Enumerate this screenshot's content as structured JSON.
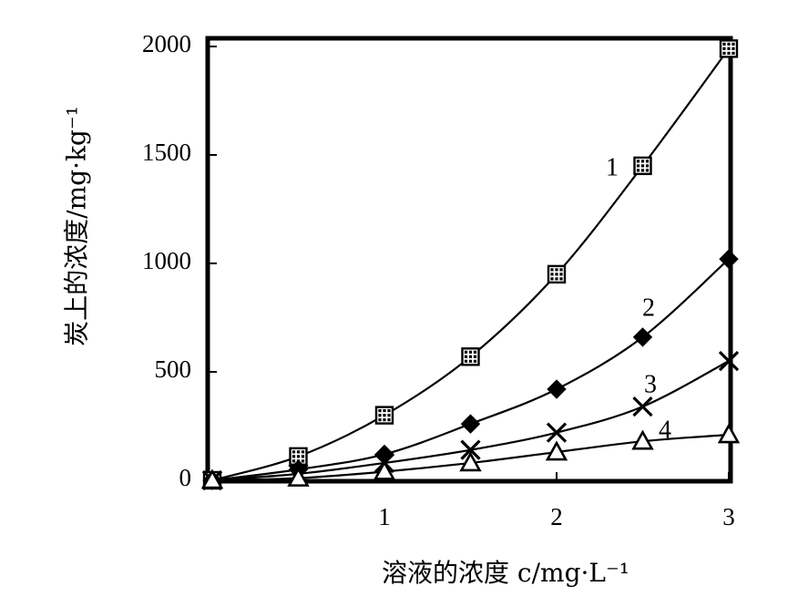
{
  "chart_data": {
    "type": "line",
    "xlabel": "溶液的浓度 c/mg·L⁻¹",
    "ylabel": "炭上的浓度/mg·kg⁻¹",
    "xlim": [
      0,
      3
    ],
    "ylim": [
      0,
      2000
    ],
    "x_ticks": [
      {
        "value": 1,
        "label": "1"
      },
      {
        "value": 2,
        "label": "2"
      },
      {
        "value": 3,
        "label": "3"
      }
    ],
    "y_ticks": [
      {
        "value": 0,
        "label": "0"
      },
      {
        "value": 500,
        "label": "500"
      },
      {
        "value": 1000,
        "label": "1000"
      },
      {
        "value": 1500,
        "label": "1500"
      },
      {
        "value": 2000,
        "label": "2000"
      }
    ],
    "grid": false,
    "series": [
      {
        "label": "1",
        "marker": "dotted-square",
        "x": [
          0,
          0.5,
          1,
          1.5,
          2,
          2.5,
          3
        ],
        "y": [
          0,
          110,
          300,
          570,
          950,
          1450,
          1990
        ]
      },
      {
        "label": "2",
        "marker": "diamond",
        "x": [
          0,
          0.5,
          1,
          1.5,
          2,
          2.5,
          3
        ],
        "y": [
          0,
          50,
          120,
          260,
          420,
          660,
          1020
        ]
      },
      {
        "label": "3",
        "marker": "x",
        "x": [
          0,
          0.5,
          1,
          1.5,
          2,
          2.5,
          3
        ],
        "y": [
          0,
          30,
          80,
          140,
          220,
          340,
          550
        ]
      },
      {
        "label": "4",
        "marker": "triangle",
        "x": [
          0,
          0.5,
          1,
          1.5,
          2,
          2.5,
          3
        ],
        "y": [
          0,
          10,
          40,
          80,
          130,
          180,
          210
        ]
      }
    ]
  }
}
